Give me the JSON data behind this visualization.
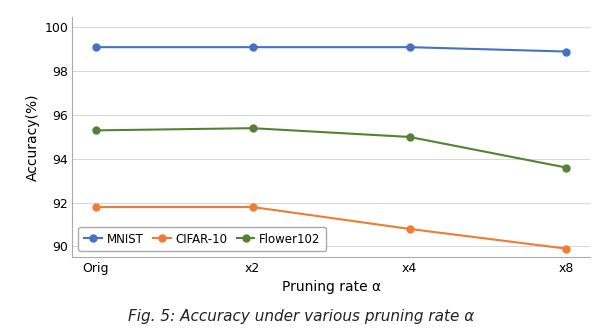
{
  "x_labels": [
    "Orig",
    "x2",
    "x4",
    "x8"
  ],
  "x_values": [
    0,
    1,
    2,
    3
  ],
  "mnist": [
    99.1,
    99.1,
    99.1,
    98.9
  ],
  "cifar10": [
    91.8,
    91.8,
    90.8,
    89.9
  ],
  "flower102": [
    95.3,
    95.4,
    95.0,
    93.6
  ],
  "mnist_color": "#4472c4",
  "cifar10_color": "#ed7d31",
  "flower102_color": "#548235",
  "xlabel": "Pruning rate α",
  "ylabel": "Accuracy(%)",
  "ylim": [
    89.5,
    100.5
  ],
  "yticks": [
    90,
    92,
    94,
    96,
    98,
    100
  ],
  "legend_labels": [
    "MNIST",
    "CIFAR-10",
    "Flower102"
  ],
  "marker": "o",
  "linewidth": 1.5,
  "markersize": 5,
  "bg_color": "#ffffff",
  "grid_color": "#cccccc",
  "caption": "Fig. 5: Accuracy under various pruning rate α"
}
